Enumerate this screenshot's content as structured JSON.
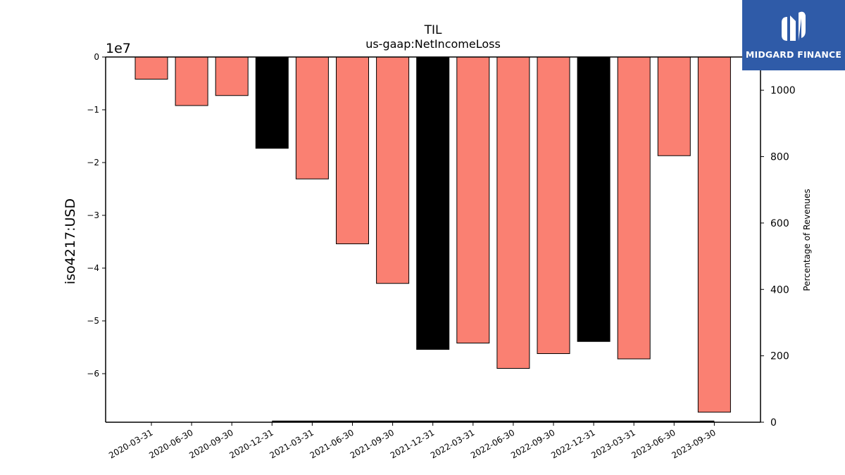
{
  "chart_data": {
    "type": "bar",
    "title": "TIL",
    "subtitle": "us-gaap:NetIncomeLoss",
    "ylabel": "iso4217:USD",
    "y_scale_label": "1e7",
    "y2label": "Percentage of Revenues",
    "categories": [
      "2020-03-31",
      "2020-06-30",
      "2020-09-30",
      "2020-12-31",
      "2021-03-31",
      "2021-06-30",
      "2021-09-30",
      "2021-12-31",
      "2022-03-31",
      "2022-06-30",
      "2022-09-30",
      "2022-12-31",
      "2023-03-31",
      "2023-06-30",
      "2023-09-30"
    ],
    "values": [
      -4200000,
      -9200000,
      -7300000,
      -17300000,
      -23100000,
      -35400000,
      -42900000,
      -55400000,
      -54200000,
      -59000000,
      -56200000,
      -53900000,
      -57200000,
      -18700000,
      -67300000
    ],
    "bar_colors": [
      "#fa8072",
      "#fa8072",
      "#fa8072",
      "#000000",
      "#fa8072",
      "#fa8072",
      "#fa8072",
      "#000000",
      "#fa8072",
      "#fa8072",
      "#fa8072",
      "#000000",
      "#fa8072",
      "#fa8072",
      "#fa8072"
    ],
    "ylim": [
      -69200000,
      0
    ],
    "yticks": [
      0,
      -1,
      -2,
      -3,
      -4,
      -5,
      -6
    ],
    "ytick_labels": [
      "0",
      "−1",
      "−2",
      "−3",
      "−4",
      "−5",
      "−6"
    ],
    "y2lim": [
      0,
      1100
    ],
    "y2ticks": [
      0,
      200,
      400,
      600,
      800,
      1000
    ],
    "y2tick_labels": [
      "0",
      "200",
      "400",
      "600",
      "800",
      "1000"
    ],
    "secondary_line": {
      "x_from": "2020-12-31",
      "x_to": "2023-09-30",
      "value": 0
    },
    "grid": false,
    "legend": "none"
  },
  "logo": {
    "text": "MIDGARD FINANCE",
    "icon": "midgard-logo-icon",
    "background": "#2f5ba8"
  }
}
